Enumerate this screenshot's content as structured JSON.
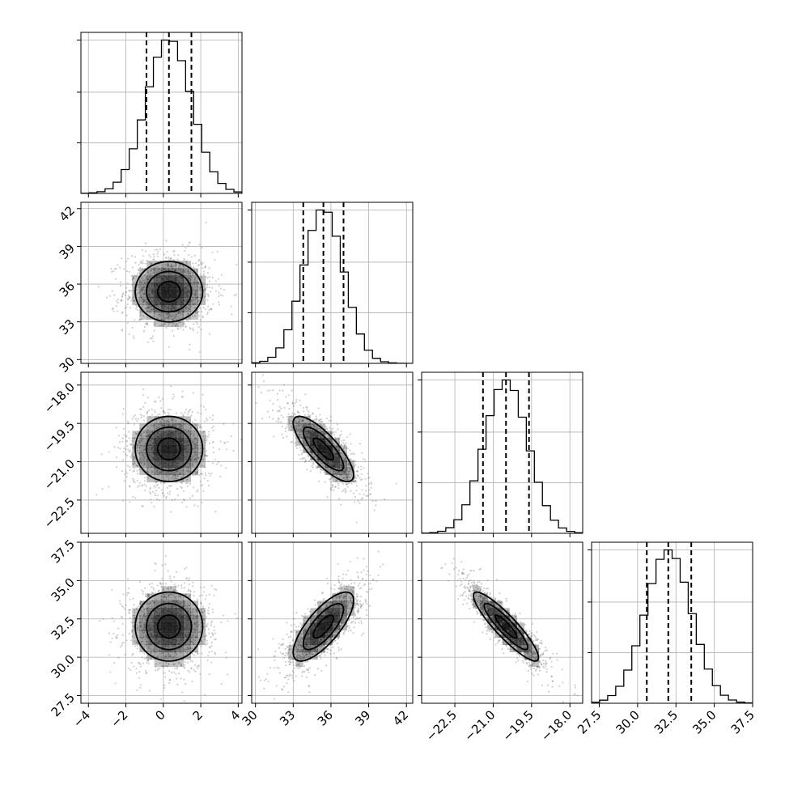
{
  "chart_data": {
    "type": "corner",
    "params": [
      {
        "ticks": [
          -4,
          -2,
          0,
          2,
          4
        ],
        "tick_labels": [
          "−4",
          "−2",
          "0",
          "2",
          "4"
        ],
        "range": [
          -4.4,
          4.2
        ],
        "mean": 0.3,
        "sd": 1.2,
        "quantiles": [
          -0.9,
          0.3,
          1.5
        ],
        "grid": true
      },
      {
        "ticks": [
          30,
          33,
          36,
          39,
          42
        ],
        "tick_labels": [
          "30",
          "33",
          "36",
          "39",
          "42"
        ],
        "range": [
          29.7,
          42.5
        ],
        "mean": 35.4,
        "sd": 1.6,
        "quantiles": [
          33.8,
          35.4,
          37.0
        ],
        "grid": true
      },
      {
        "ticks": [
          -22.5,
          -21.0,
          -19.5,
          -18.0
        ],
        "tick_labels": [
          "−22.5",
          "−21.0",
          "−19.5",
          "−18.0"
        ],
        "range": [
          -23.8,
          -17.5
        ],
        "mean": -20.5,
        "sd": 0.85,
        "quantiles": [
          -21.4,
          -20.5,
          -19.6
        ],
        "grid": true
      },
      {
        "ticks": [
          27.5,
          30.0,
          32.5,
          35.0,
          37.5
        ],
        "tick_labels": [
          "27.5",
          "30.0",
          "32.5",
          "35.0",
          "37.5"
        ],
        "range": [
          27.0,
          37.5
        ],
        "mean": 32.0,
        "sd": 1.5,
        "quantiles": [
          30.6,
          32.0,
          33.5
        ],
        "grid": true
      }
    ],
    "correlations": [
      [
        1,
        0,
        0,
        0
      ],
      [
        0,
        1,
        -0.8,
        0.75
      ],
      [
        0,
        -0.8,
        1,
        -0.9
      ],
      [
        0,
        0.75,
        -0.9,
        1
      ]
    ],
    "histogram_bins": 20,
    "scatter_points_per_panel": 1100,
    "contour_levels": [
      0.5,
      1.0,
      1.5
    ],
    "colors": {
      "points": "#777777",
      "density": "#000000",
      "lines": "#000000"
    },
    "xlabels": [],
    "ylabels": []
  }
}
